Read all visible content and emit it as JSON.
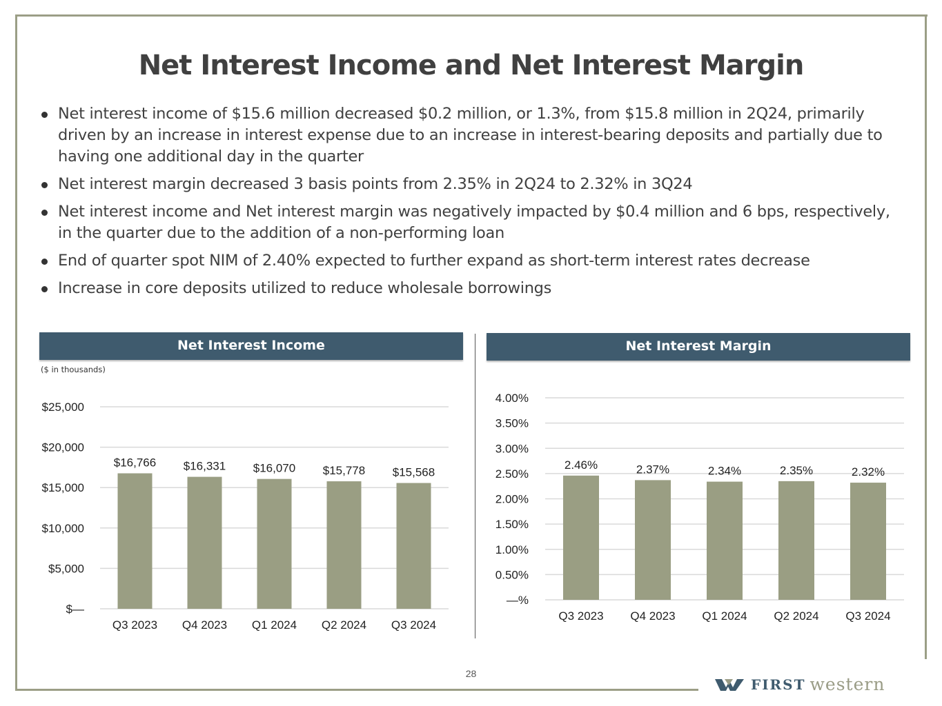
{
  "title": "Net Interest Income and Net Interest Margin",
  "bullets": [
    "Net interest income of $15.6 million decreased $0.2 million, or 1.3%, from $15.8 million in 2Q24, primarily driven by an increase in interest expense due to an increase in interest-bearing deposits and partially due to having one additional day in the quarter",
    "Net interest margin decreased 3 basis points from 2.35% in 2Q24 to 2.32% in 3Q24",
    "Net interest income and Net interest margin was negatively impacted by $0.4 million and 6 bps, respectively,  in the quarter due to the addition of a non-performing loan",
    "End of quarter spot NIM of 2.40% expected to further expand as short-term interest rates decrease",
    "Increase in core deposits utilized to reduce wholesale borrowings"
  ],
  "page_number": "28",
  "logo": {
    "part1": "FIRST",
    "part2": "western"
  },
  "colors": {
    "bar": "#9a9e83",
    "header": "#3f5b6e",
    "frame": "#9b9e86"
  },
  "chart_data": [
    {
      "type": "bar",
      "title": "Net Interest Income",
      "note": "($ in thousands)",
      "categories": [
        "Q3 2023",
        "Q4 2023",
        "Q1 2024",
        "Q2 2024",
        "Q3 2024"
      ],
      "values": [
        16766,
        16331,
        16070,
        15778,
        15568
      ],
      "data_labels": [
        "$16,766",
        "$16,331",
        "$16,070",
        "$15,778",
        "$15,568"
      ],
      "ylim": [
        0,
        25000
      ],
      "yticks": [
        "$—",
        "$5,000",
        "$10,000",
        "$15,000",
        "$20,000",
        "$25,000"
      ],
      "grid": true
    },
    {
      "type": "bar",
      "title": "Net Interest Margin",
      "categories": [
        "Q3 2023",
        "Q4 2023",
        "Q1 2024",
        "Q2 2024",
        "Q3 2024"
      ],
      "values": [
        2.46,
        2.37,
        2.34,
        2.35,
        2.32
      ],
      "data_labels": [
        "2.46%",
        "2.37%",
        "2.34%",
        "2.35%",
        "2.32%"
      ],
      "ylim": [
        0,
        4
      ],
      "yticks": [
        "—%",
        "0.50%",
        "1.00%",
        "1.50%",
        "2.00%",
        "2.50%",
        "3.00%",
        "3.50%",
        "4.00%"
      ],
      "grid": true
    }
  ]
}
